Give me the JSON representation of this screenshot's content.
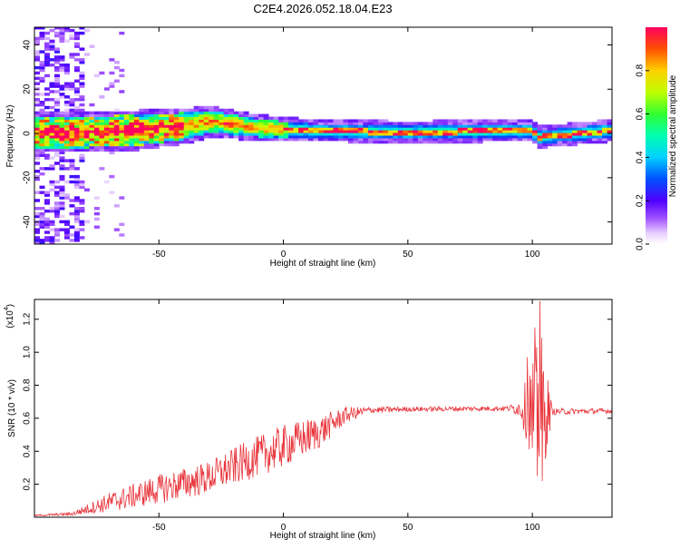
{
  "title": "C2E4.2026.052.18.04.E23",
  "chart_data": [
    {
      "type": "heatmap",
      "name": "spectrogram",
      "xlabel": "Height of straight line (km)",
      "ylabel": "Frequency (Hz)",
      "xlim": [
        -100,
        132
      ],
      "ylim": [
        -50,
        48
      ],
      "xticks": [
        -50,
        0,
        50,
        100
      ],
      "yticks": [
        40,
        20,
        0,
        -20,
        -40
      ],
      "ridge": [
        {
          "x": -85,
          "f": 0,
          "halfwidth": 7
        },
        {
          "x": -60,
          "f": 1,
          "halfwidth": 7
        },
        {
          "x": -40,
          "f": 3,
          "halfwidth": 6
        },
        {
          "x": -30,
          "f": 5,
          "halfwidth": 5
        },
        {
          "x": -10,
          "f": 2,
          "halfwidth": 4
        },
        {
          "x": 10,
          "f": 1,
          "halfwidth": 3
        },
        {
          "x": 50,
          "f": 0,
          "halfwidth": 3
        },
        {
          "x": 98,
          "f": 1,
          "halfwidth": 3
        },
        {
          "x": 102,
          "f": -2,
          "halfwidth": 3
        },
        {
          "x": 132,
          "f": 1,
          "halfwidth": 3
        }
      ],
      "colorbar": {
        "label": "Normalized spectral amplitude",
        "range": [
          0,
          1
        ],
        "ticks": [
          "0.0",
          "0.2",
          "0.4",
          "0.6",
          "0.8"
        ],
        "tick_values": [
          0.0,
          0.2,
          0.4,
          0.6,
          0.8
        ]
      }
    },
    {
      "type": "line",
      "name": "snr",
      "xlabel": "Height of straight line (km)",
      "ylabel": "SNR (10 * v/v)",
      "multiplier_label": "(x10",
      "multiplier_exp": "4",
      "xlim": [
        -100,
        132
      ],
      "ylim": [
        0,
        1.32
      ],
      "xticks": [
        -50,
        0,
        50,
        100
      ],
      "yticks": [
        1.2,
        1.0,
        0.8,
        0.6,
        0.4,
        0.2
      ],
      "ytick_labels": [
        "1.2",
        "1.0",
        "0.8",
        "0.6",
        "0.4",
        "0.2"
      ],
      "color": "#e8343a",
      "envelope": [
        {
          "x": -100,
          "y": 0.01,
          "amp": 0.005
        },
        {
          "x": -85,
          "y": 0.02,
          "amp": 0.01
        },
        {
          "x": -70,
          "y": 0.09,
          "amp": 0.06
        },
        {
          "x": -50,
          "y": 0.17,
          "amp": 0.09
        },
        {
          "x": -30,
          "y": 0.24,
          "amp": 0.1
        },
        {
          "x": -15,
          "y": 0.34,
          "amp": 0.12
        },
        {
          "x": 0,
          "y": 0.43,
          "amp": 0.13
        },
        {
          "x": 15,
          "y": 0.52,
          "amp": 0.1
        },
        {
          "x": 25,
          "y": 0.62,
          "amp": 0.05
        },
        {
          "x": 35,
          "y": 0.65,
          "amp": 0.02
        },
        {
          "x": 50,
          "y": 0.655,
          "amp": 0.015
        },
        {
          "x": 90,
          "y": 0.66,
          "amp": 0.015
        },
        {
          "x": 95,
          "y": 0.66,
          "amp": 0.05
        },
        {
          "x": 100,
          "y": 0.66,
          "amp": 0.32
        },
        {
          "x": 104,
          "y": 0.66,
          "amp": 0.45
        },
        {
          "x": 108,
          "y": 0.64,
          "amp": 0.02
        },
        {
          "x": 132,
          "y": 0.645,
          "amp": 0.015
        }
      ],
      "spikes": [
        {
          "x": 98,
          "y": 0.97
        },
        {
          "x": 100,
          "y": 0.42
        },
        {
          "x": 101,
          "y": 1.15
        },
        {
          "x": 102,
          "y": 0.25
        },
        {
          "x": 103,
          "y": 1.31
        },
        {
          "x": 104,
          "y": 0.22
        },
        {
          "x": 105,
          "y": 0.7
        }
      ]
    }
  ]
}
